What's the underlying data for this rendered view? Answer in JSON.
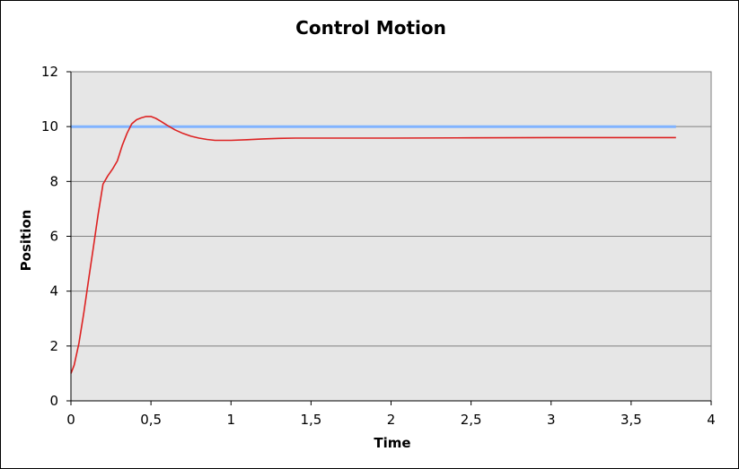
{
  "chart_data": {
    "type": "line",
    "title": "Control Motion",
    "xlabel": "Time",
    "ylabel": "Position",
    "xlim": [
      0,
      4
    ],
    "ylim": [
      0,
      12
    ],
    "x_ticks": [
      0,
      0.5,
      1,
      1.5,
      2,
      2.5,
      3,
      3.5,
      4
    ],
    "x_tick_labels": [
      "0",
      "0,5",
      "1",
      "1,5",
      "2",
      "2,5",
      "3",
      "3,5",
      "4"
    ],
    "y_ticks": [
      0,
      2,
      4,
      6,
      8,
      10,
      12
    ],
    "y_tick_labels": [
      "0",
      "2",
      "4",
      "6",
      "8",
      "10",
      "12"
    ],
    "grid": "horizontal",
    "legend": "none",
    "plot_background": "#e6e6e6",
    "series": [
      {
        "color": "#80b3ff",
        "x": [
          0,
          3.78
        ],
        "y": [
          10,
          10
        ]
      },
      {
        "color": "#dd2222",
        "x": [
          0,
          0.02,
          0.05,
          0.08,
          0.11,
          0.14,
          0.17,
          0.2,
          0.23,
          0.26,
          0.29,
          0.32,
          0.35,
          0.38,
          0.41,
          0.44,
          0.47,
          0.5,
          0.53,
          0.56,
          0.6,
          0.65,
          0.7,
          0.75,
          0.8,
          0.85,
          0.9,
          0.95,
          1.0,
          1.1,
          1.2,
          1.3,
          1.4,
          1.5,
          2.0,
          2.5,
          3.0,
          3.5,
          3.78
        ],
        "y": [
          1.0,
          1.3,
          2.1,
          3.2,
          4.4,
          5.6,
          6.8,
          7.9,
          8.2,
          8.45,
          8.75,
          9.3,
          9.75,
          10.1,
          10.25,
          10.32,
          10.37,
          10.37,
          10.3,
          10.2,
          10.05,
          9.88,
          9.75,
          9.65,
          9.58,
          9.53,
          9.5,
          9.5,
          9.5,
          9.52,
          9.55,
          9.57,
          9.58,
          9.58,
          9.58,
          9.59,
          9.6,
          9.6,
          9.6
        ]
      }
    ]
  }
}
